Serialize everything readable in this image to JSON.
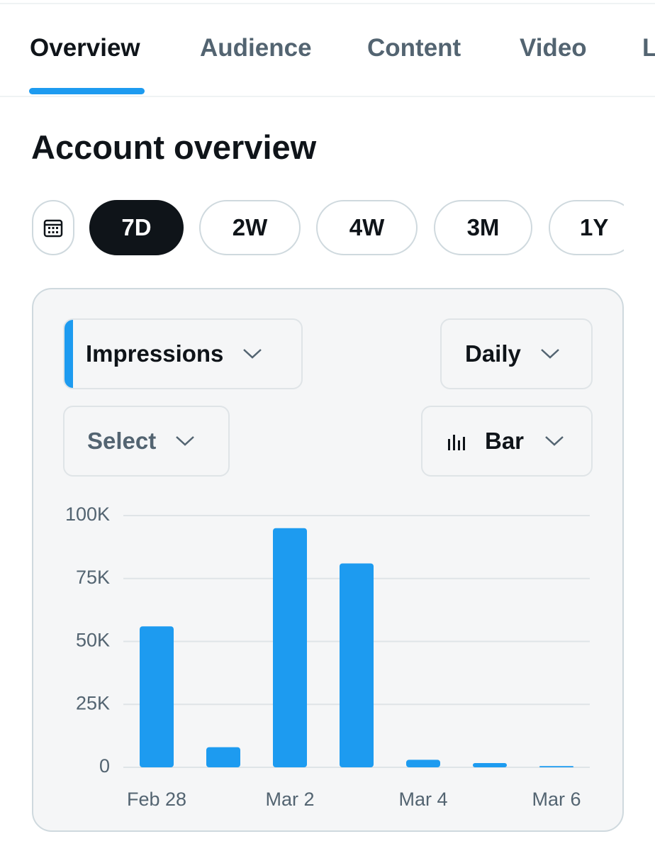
{
  "tabs": [
    "Overview",
    "Audience",
    "Content",
    "Video",
    "L"
  ],
  "heading": "Account overview",
  "ranges": [
    "7D",
    "2W",
    "4W",
    "3M",
    "1Y"
  ],
  "controls": {
    "metric": "Impressions",
    "interval": "Daily",
    "compare": "Select",
    "chart_style": "Bar"
  },
  "chart_data": {
    "type": "bar",
    "categories": [
      "Feb 28",
      null,
      "Mar 2",
      null,
      "Mar 4",
      null,
      "Mar 6"
    ],
    "values": [
      56000,
      8000,
      95000,
      81000,
      3000,
      1700,
      500
    ],
    "color": "#1d9bf0",
    "ylim": [
      0,
      100000
    ],
    "yticks": [
      0,
      {
        "value": 25000,
        "label": "25K"
      },
      {
        "value": 50000,
        "label": "50K"
      },
      {
        "value": 75000,
        "label": "75K"
      },
      {
        "value": 100000,
        "label": "100K"
      }
    ],
    "grid": true
  }
}
